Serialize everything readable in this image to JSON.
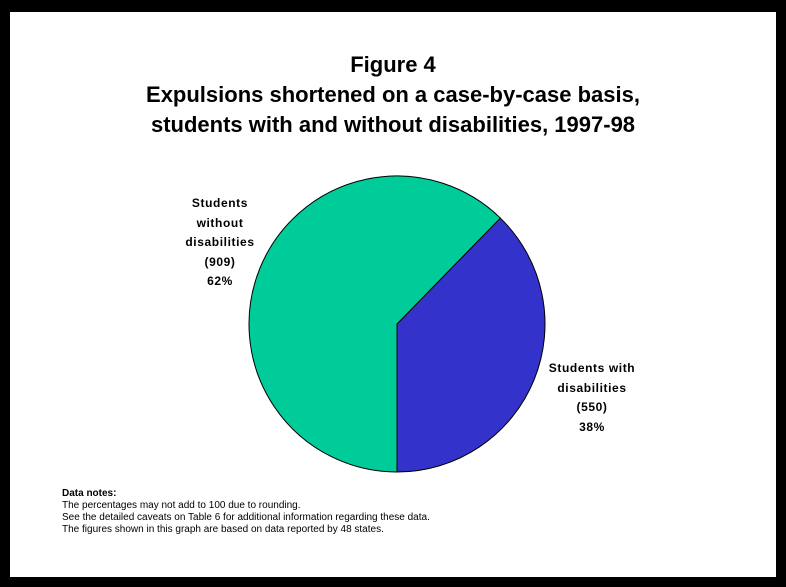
{
  "title": {
    "line1": "Figure 4",
    "line2": "Expulsions shortened on a case-by-case basis,",
    "line3": "students with and without disabilities, 1997-98"
  },
  "chart_data": {
    "type": "pie",
    "slices": [
      {
        "label_lines": [
          "Students with",
          "disabilities"
        ],
        "count_text": "(550)",
        "percent_text": "38%",
        "value": 550,
        "color": "#3333cc"
      },
      {
        "label_lines": [
          "Students",
          "without",
          "disabilities"
        ],
        "count_text": "(909)",
        "percent_text": "62%",
        "value": 909,
        "color": "#00cc99"
      }
    ]
  },
  "notes": {
    "heading": "Data notes:",
    "lines": [
      "The percentages may not add to 100 due to rounding.",
      "See the detailed caveats on Table 6 for additional information regarding these data.",
      "The figures shown in this graph are based on data reported by 48 states."
    ]
  }
}
